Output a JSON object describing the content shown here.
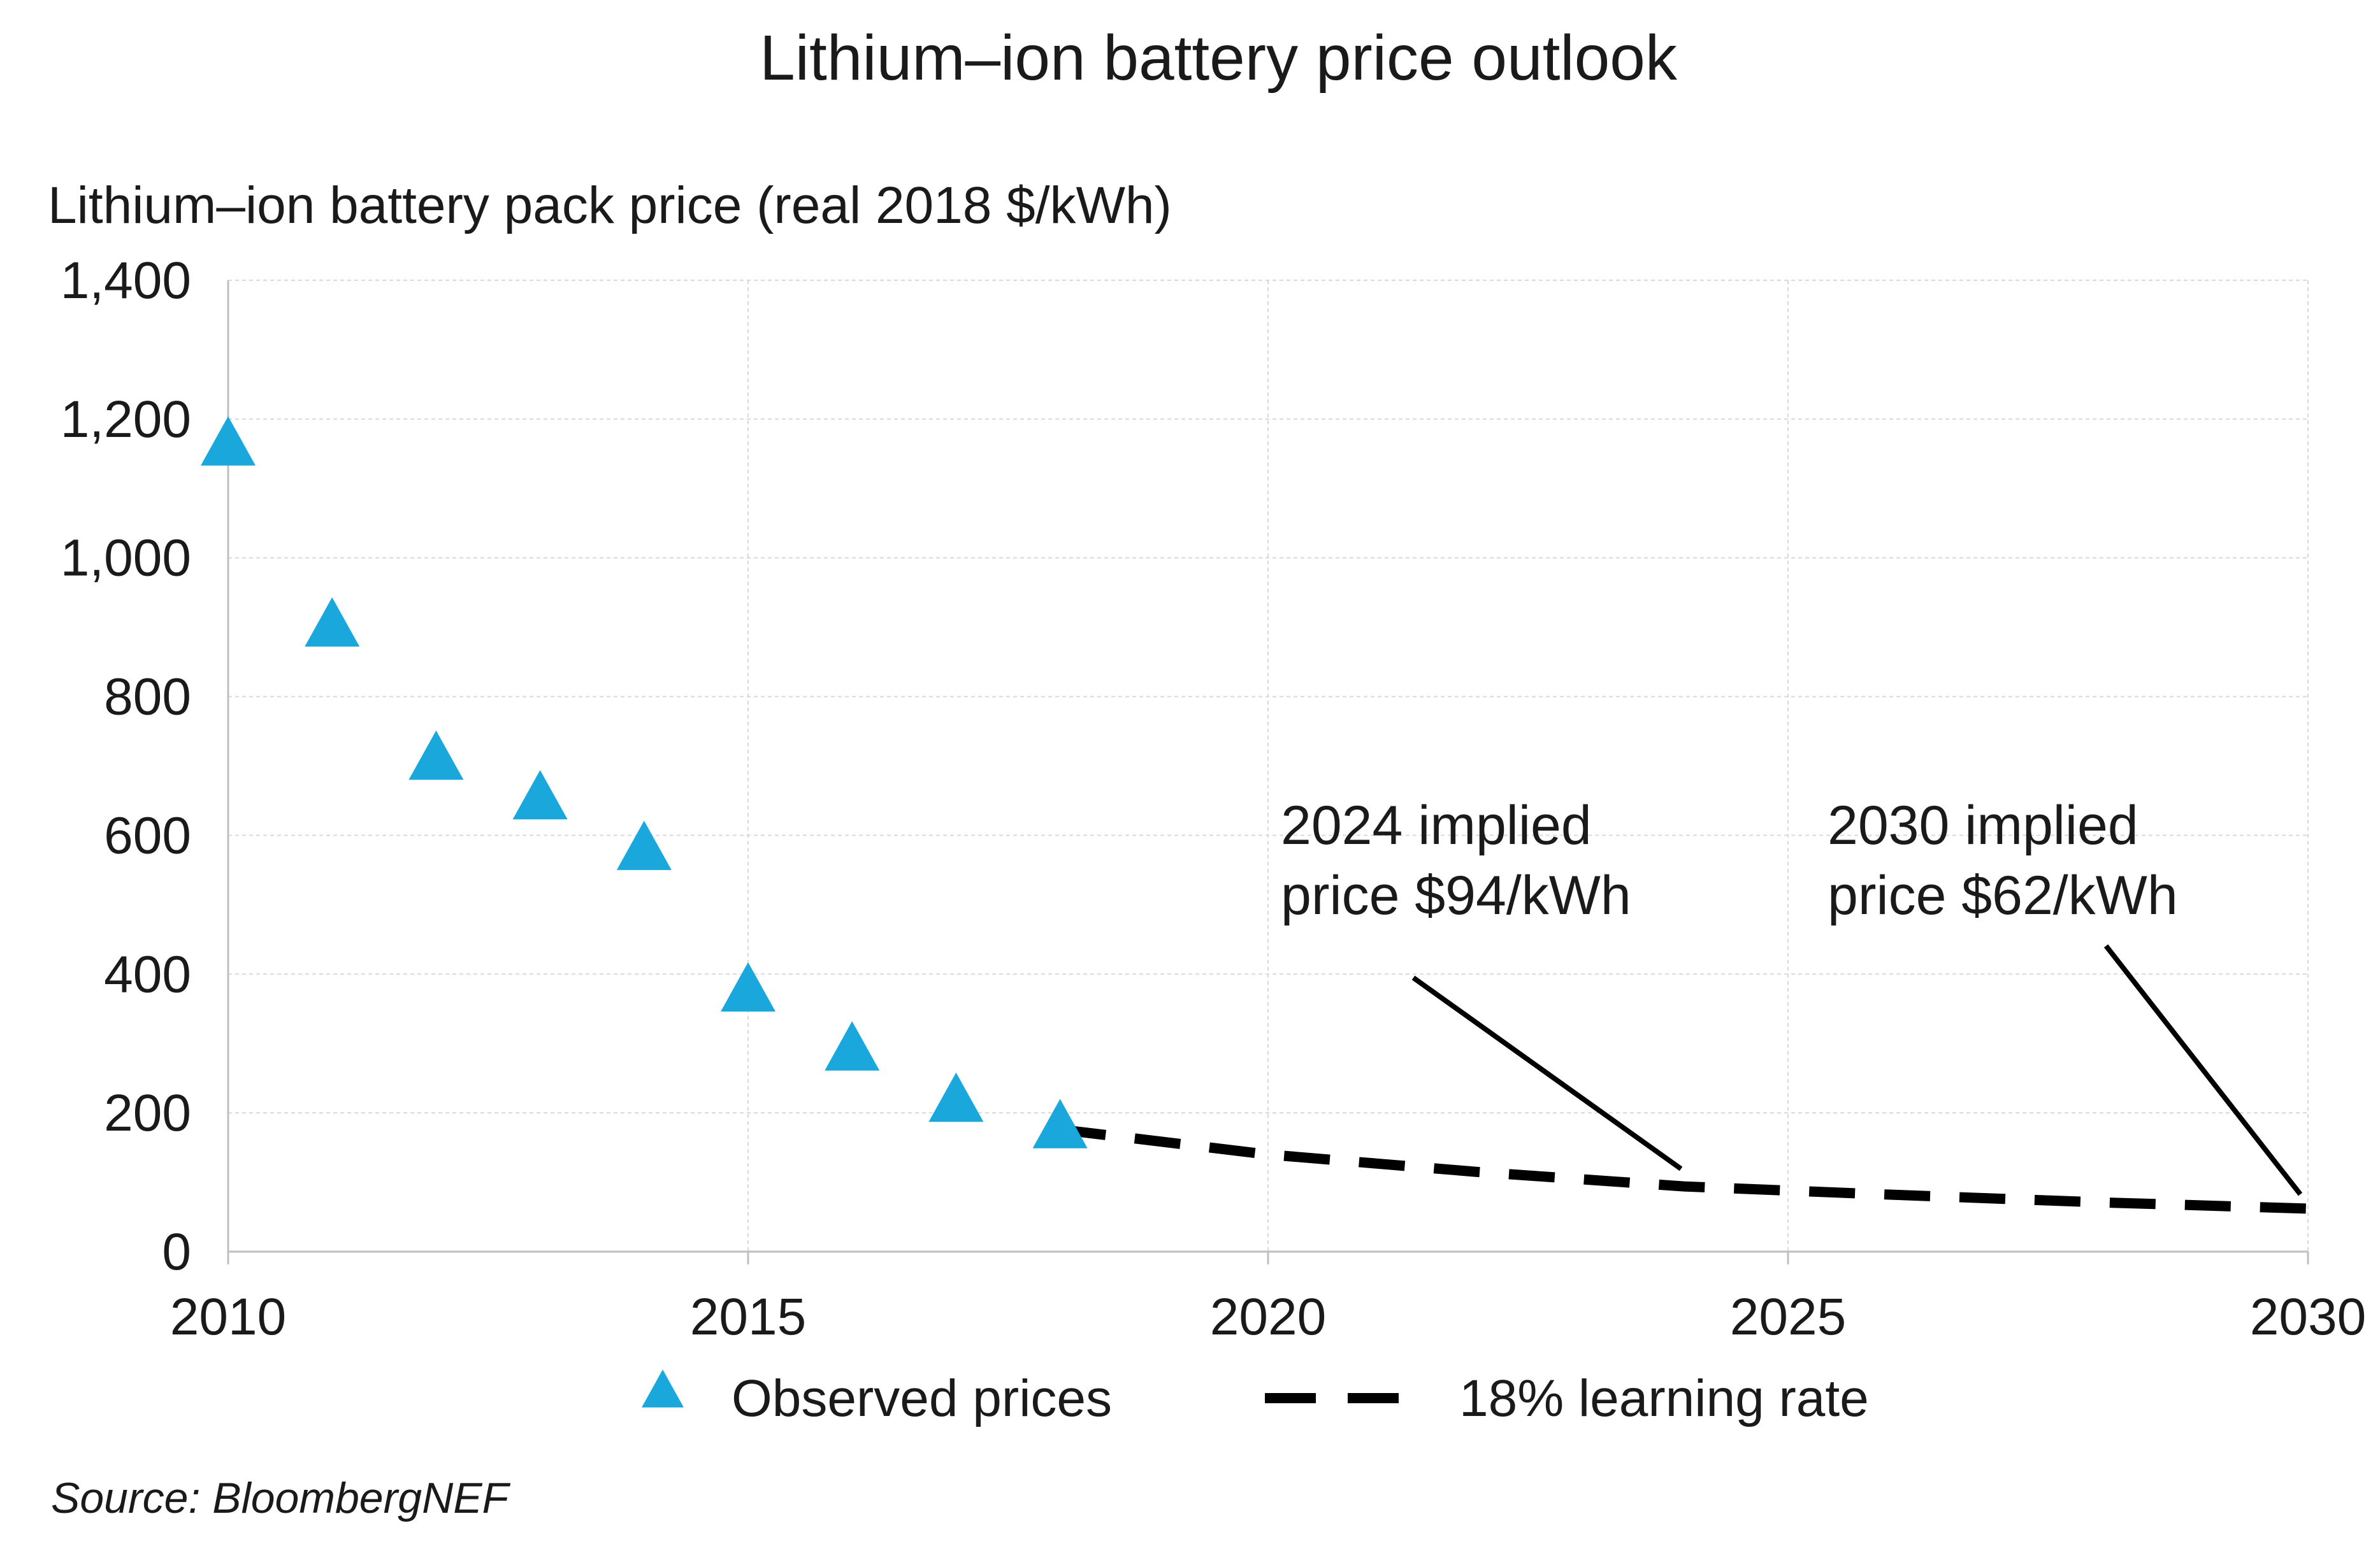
{
  "chart_data": {
    "type": "scatter",
    "title": "Lithium–ion battery price outlook",
    "ylabel": "Lithium–ion battery pack price (real 2018 $/kWh)",
    "xlabel": "",
    "xlim": [
      2010,
      2030
    ],
    "ylim": [
      0,
      1400
    ],
    "x_ticks": [
      2010,
      2015,
      2020,
      2025,
      2030
    ],
    "y_ticks": [
      0,
      200,
      400,
      600,
      800,
      1000,
      1200,
      1400
    ],
    "y_tick_labels": [
      "0",
      "200",
      "400",
      "600",
      "800",
      "1,000",
      "1,200",
      "1,400"
    ],
    "x_tick_labels": [
      "2010",
      "2015",
      "2020",
      "2025",
      "2030"
    ],
    "grid": true,
    "series": [
      {
        "name": "Observed prices",
        "kind": "scatter",
        "marker": "triangle",
        "color": "#1aa7dc",
        "points": [
          {
            "x": 2010,
            "y": 1160
          },
          {
            "x": 2011,
            "y": 899
          },
          {
            "x": 2012,
            "y": 707
          },
          {
            "x": 2013,
            "y": 650
          },
          {
            "x": 2014,
            "y": 577
          },
          {
            "x": 2015,
            "y": 373
          },
          {
            "x": 2016,
            "y": 288
          },
          {
            "x": 2017,
            "y": 214
          },
          {
            "x": 2018,
            "y": 176
          }
        ]
      },
      {
        "name": "18% learning rate",
        "kind": "line",
        "style": "dashed",
        "color": "#000000",
        "points": [
          {
            "x": 2018,
            "y": 176
          },
          {
            "x": 2020,
            "y": 140
          },
          {
            "x": 2022,
            "y": 115
          },
          {
            "x": 2024,
            "y": 94
          },
          {
            "x": 2026,
            "y": 82
          },
          {
            "x": 2028,
            "y": 71
          },
          {
            "x": 2030,
            "y": 62
          }
        ]
      }
    ],
    "annotations": [
      {
        "lines": [
          "2024 implied",
          "price $94/kWh"
        ],
        "target": {
          "x": 2024,
          "y": 94
        }
      },
      {
        "lines": [
          "2030 implied",
          "price $62/kWh"
        ],
        "target": {
          "x": 2030,
          "y": 62
        }
      }
    ],
    "legend_placement": "bottom",
    "source": "Source: BloombergNEF"
  }
}
